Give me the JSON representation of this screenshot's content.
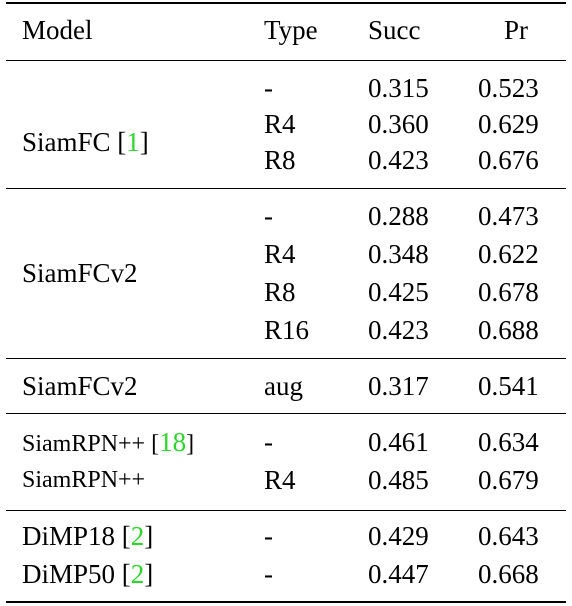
{
  "header": {
    "model": "Model",
    "type": "Type",
    "succ": "Succ",
    "pr": "Pr"
  },
  "groups": [
    {
      "model": "SiamFC [",
      "cite": "1",
      "model_close": "]",
      "rows": [
        {
          "type": "-",
          "succ": "0.315",
          "pr": "0.523"
        },
        {
          "type": "R4",
          "succ": "0.360",
          "pr": "0.629"
        },
        {
          "type": "R8",
          "succ": "0.423",
          "pr": "0.676"
        }
      ]
    },
    {
      "model": "SiamFCv2",
      "rows": [
        {
          "type": "-",
          "succ": "0.288",
          "pr": "0.473"
        },
        {
          "type": "R4",
          "succ": "0.348",
          "pr": "0.622"
        },
        {
          "type": "R8",
          "succ": "0.425",
          "pr": "0.678"
        },
        {
          "type": "R16",
          "succ": "0.423",
          "pr": "0.688"
        }
      ]
    },
    {
      "rows": [
        {
          "model": "SiamFCv2",
          "type": "aug",
          "succ": "0.317",
          "pr": "0.541"
        }
      ]
    },
    {
      "rows": [
        {
          "model": "SiamRPN++ [",
          "cite": "18",
          "model_close": "]",
          "type": "-",
          "succ": "0.461",
          "pr": "0.634"
        },
        {
          "model": "SiamRPN++",
          "type": "R4",
          "succ": "0.485",
          "pr": "0.679"
        }
      ]
    },
    {
      "rows": [
        {
          "model": "DiMP18 [",
          "cite": "2",
          "model_close": "]",
          "type": "-",
          "succ": "0.429",
          "pr": "0.643"
        },
        {
          "model": "DiMP50 [",
          "cite": "2",
          "model_close": "]",
          "type": "-",
          "succ": "0.447",
          "pr": "0.668"
        }
      ]
    }
  ],
  "colors": {
    "citation": "#2dd52d",
    "text": "#000000",
    "rule": "#000000"
  }
}
